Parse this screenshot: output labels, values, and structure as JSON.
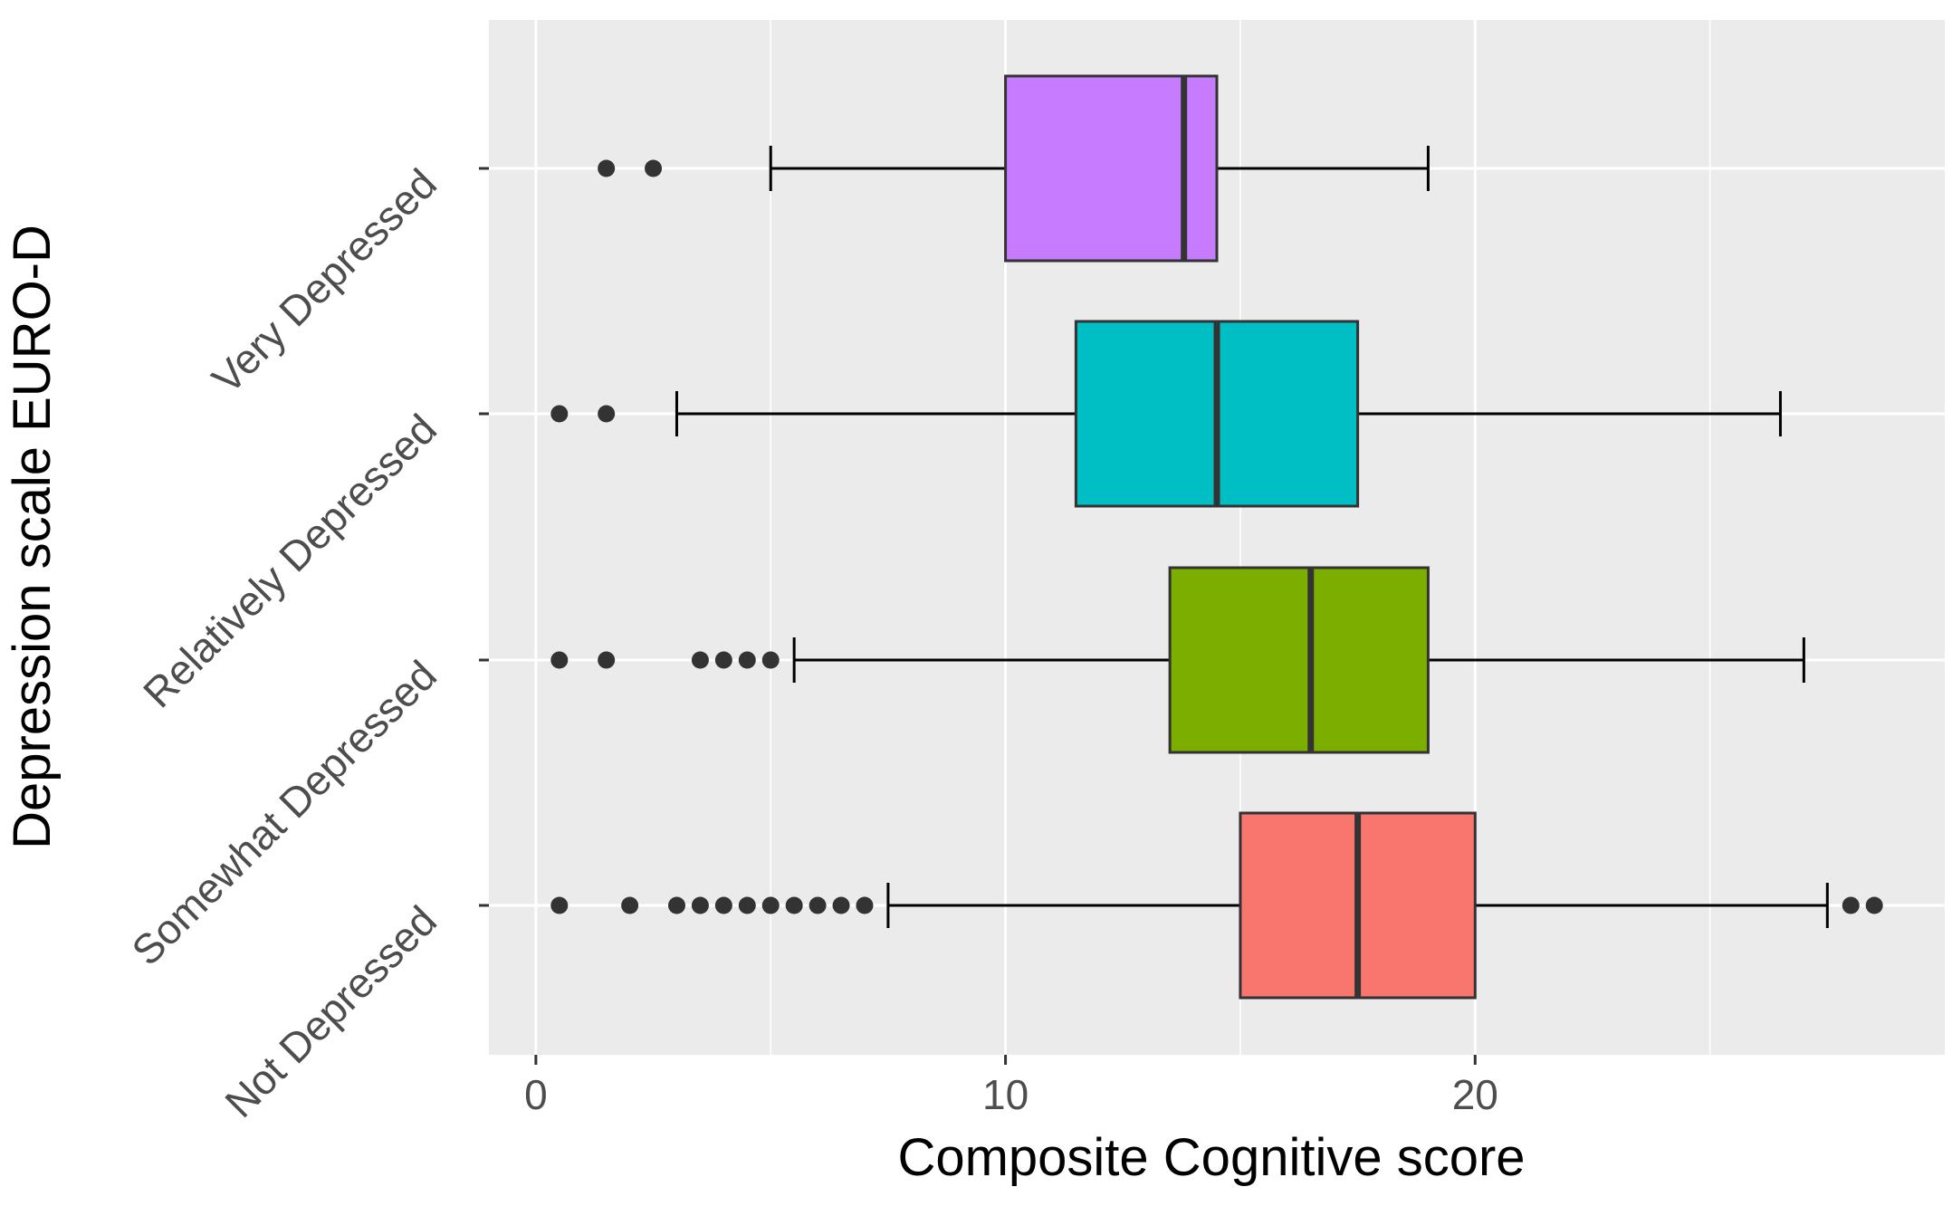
{
  "chart_data": {
    "type": "boxplot",
    "orientation": "horizontal",
    "xlabel": "Composite Cognitive score",
    "ylabel": "Depression scale EURO-D",
    "xlim": [
      -1,
      30
    ],
    "xticks": [
      0,
      10,
      20
    ],
    "grid": true,
    "background": "#ebebeb",
    "categories": [
      "Very Depressed",
      "Relatively Depressed",
      "Somewhat Depressed",
      "Not Depressed"
    ],
    "boxes": [
      {
        "category": "Very Depressed",
        "color": "#c77cff",
        "whisker_low": 5,
        "q1": 10,
        "median": 13.8,
        "q3": 14.5,
        "whisker_high": 19,
        "outliers": [
          1.5,
          2.5
        ]
      },
      {
        "category": "Relatively Depressed",
        "color": "#00bfc4",
        "whisker_low": 3,
        "q1": 11.5,
        "median": 14.5,
        "q3": 17.5,
        "whisker_high": 26.5,
        "outliers": [
          0.5,
          1.5
        ]
      },
      {
        "category": "Somewhat Depressed",
        "color": "#7cae00",
        "whisker_low": 5.5,
        "q1": 13.5,
        "median": 16.5,
        "q3": 19,
        "whisker_high": 27,
        "outliers": [
          0.5,
          1.5,
          3.5,
          4,
          4.5,
          5
        ]
      },
      {
        "category": "Not Depressed",
        "color": "#f8766d",
        "whisker_low": 7.5,
        "q1": 15,
        "median": 17.5,
        "q3": 20,
        "whisker_high": 27.5,
        "outliers": [
          0.5,
          2,
          3,
          3.5,
          4,
          4.5,
          5,
          5.5,
          6,
          6.5,
          7,
          28,
          28.5
        ]
      }
    ]
  }
}
